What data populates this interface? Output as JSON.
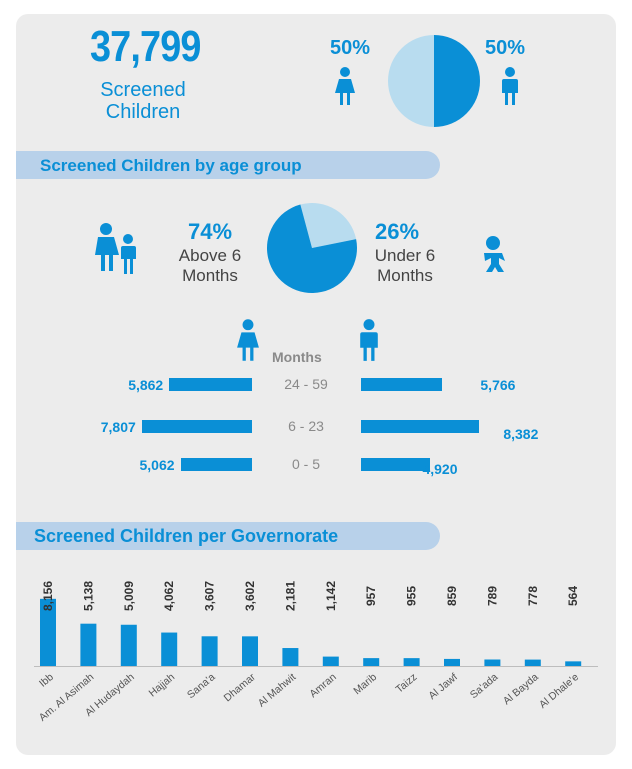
{
  "summary": {
    "total": "37,799",
    "total_label_line1": "Screened",
    "total_label_line2": "Children",
    "girls_pct": "50%",
    "boys_pct": "50%"
  },
  "age_section": {
    "title": "Screened Children by age group",
    "above_pct": "74%",
    "above_label_line1": "Above 6",
    "above_label_line2": "Months",
    "under_pct": "26%",
    "under_label_line1": "Under 6",
    "under_label_line2": "Months",
    "months_title": "Months",
    "rows": [
      {
        "range": "24 - 59",
        "girls": "5,862",
        "boys": "5,766"
      },
      {
        "range": "6 - 23",
        "girls": "7,807",
        "boys": "8,382"
      },
      {
        "range": "0 - 5",
        "girls": "5,062",
        "boys": "4,920"
      }
    ]
  },
  "gov_section": {
    "title": "Screened Children per Governorate"
  },
  "colors": {
    "primary": "#0a8fd6",
    "light": "#b8dcef",
    "header_band": "#b8d1ea",
    "background": "#ececec"
  },
  "chart_data": [
    {
      "type": "pie",
      "labels": [
        "Girls",
        "Boys"
      ],
      "values": [
        50,
        50
      ]
    },
    {
      "type": "pie",
      "labels": [
        "Above 6 Months",
        "Under 6 Months"
      ],
      "values": [
        74,
        26
      ]
    },
    {
      "type": "bar",
      "orientation": "horizontal-butterfly",
      "categories": [
        "24 - 59",
        "6 - 23",
        "0 - 5"
      ],
      "series": [
        {
          "name": "Girls",
          "values": [
            5862,
            7807,
            5062
          ]
        },
        {
          "name": "Boys",
          "values": [
            5766,
            8382,
            4920
          ]
        }
      ]
    },
    {
      "type": "bar",
      "title": "Screened Children per Governorate",
      "categories": [
        "Ibb",
        "Am. Al Asimah",
        "Al Hudaydah",
        "Hajjah",
        "Sana'a",
        "Dhamar",
        "Al Mahwit",
        "Amran",
        "Marib",
        "Taizz",
        "Al Jawf",
        "Sa'ada",
        "Al Bayda",
        "Al Dhale'e"
      ],
      "values": [
        8156,
        5138,
        5009,
        4062,
        3607,
        3602,
        2181,
        1142,
        957,
        955,
        859,
        789,
        778,
        564
      ],
      "value_labels": [
        "8,156",
        "5,138",
        "5,009",
        "4,062",
        "3,607",
        "3,602",
        "2,181",
        "1,142",
        "957",
        "955",
        "859",
        "789",
        "778",
        "564"
      ],
      "ylim": [
        0,
        8500
      ]
    }
  ]
}
